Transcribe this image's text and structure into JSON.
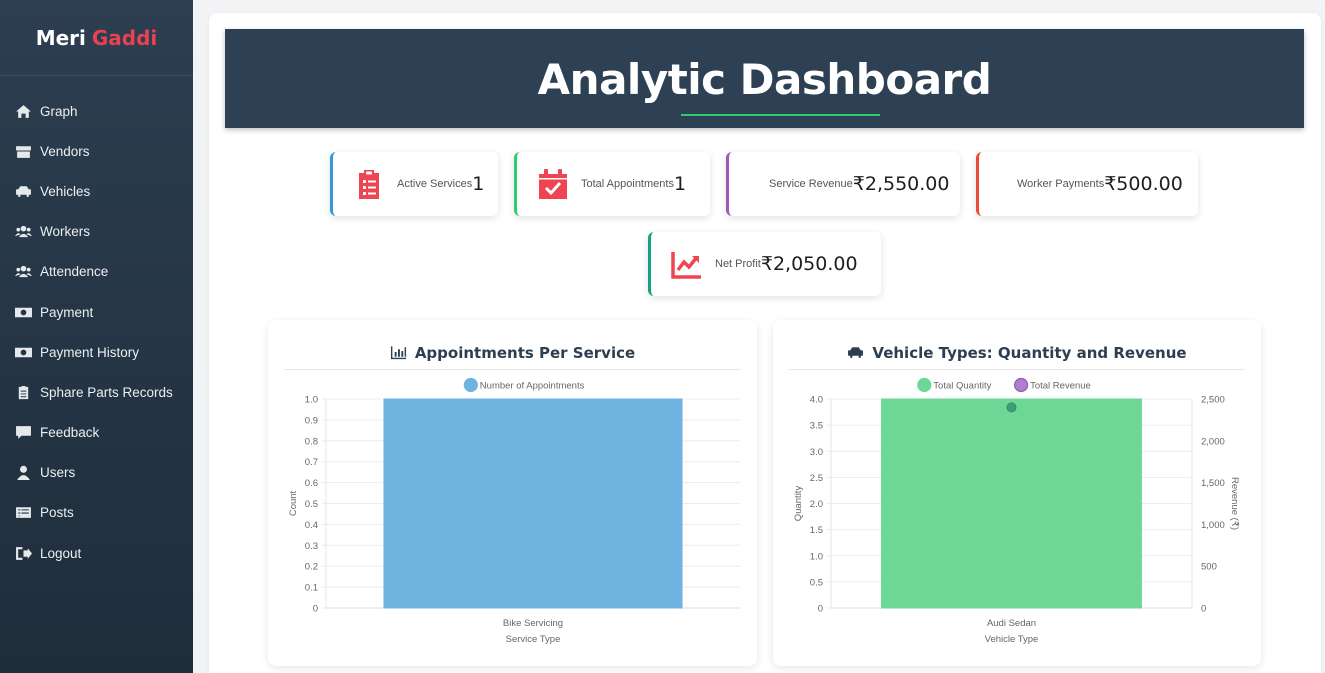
{
  "brand": {
    "first": "Meri",
    "second": "Gaddi"
  },
  "nav": [
    {
      "label": "Graph",
      "icon": "home-icon"
    },
    {
      "label": "Vendors",
      "icon": "store-icon"
    },
    {
      "label": "Vehicles",
      "icon": "car-icon"
    },
    {
      "label": "Workers",
      "icon": "users-icon"
    },
    {
      "label": "Attendence",
      "icon": "users-icon"
    },
    {
      "label": "Payment",
      "icon": "money-icon"
    },
    {
      "label": "Payment History",
      "icon": "money-icon"
    },
    {
      "label": "Sphare Parts Records",
      "icon": "clipboard-icon"
    },
    {
      "label": "Feedback",
      "icon": "comment-icon"
    },
    {
      "label": "Users",
      "icon": "user-icon"
    },
    {
      "label": "Posts",
      "icon": "list-icon"
    },
    {
      "label": "Logout",
      "icon": "logout-icon"
    }
  ],
  "banner": {
    "title": "Analytic Dashboard"
  },
  "stats": {
    "active_services": {
      "label": "Active Services",
      "value": "1",
      "color": "#3498db"
    },
    "total_appointments": {
      "label": "Total Appointments",
      "value": "1",
      "color": "#2ecc71"
    },
    "service_revenue": {
      "label": "Service Revenue",
      "value": "₹2,550.00",
      "color": "#9b59b6"
    },
    "worker_payments": {
      "label": "Worker Payments",
      "value": "₹500.00",
      "color": "#e74c3c"
    },
    "net_profit": {
      "label": "Net Profit",
      "value": "₹2,050.00",
      "color": "#16a085"
    }
  },
  "icon_color": "#ef4452",
  "chart_data": [
    {
      "type": "bar",
      "title": "Appointments Per Service",
      "categories": [
        "Bike Servicing"
      ],
      "series": [
        {
          "name": "Number of Appointments",
          "values": [
            1
          ],
          "color": "#6fb3e1"
        }
      ],
      "xlabel": "Service Type",
      "ylabel": "Count",
      "ylim": [
        0,
        1.0
      ],
      "yticks": [
        "1.0",
        "0.9",
        "0.8",
        "0.7",
        "0.6",
        "0.5",
        "0.4",
        "0.3",
        "0.2",
        "0.1",
        "0"
      ],
      "legend": "top",
      "grid": true
    },
    {
      "type": "bar",
      "title": "Vehicle Types: Quantity and Revenue",
      "categories": [
        "Audi Sedan"
      ],
      "series": [
        {
          "name": "Total Quantity",
          "values": [
            4
          ],
          "color": "#6dd895",
          "axis": "left",
          "kind": "bar"
        },
        {
          "name": "Total Revenue",
          "values": [
            2400
          ],
          "color": "#b07fd0",
          "axis": "right",
          "kind": "point"
        }
      ],
      "xlabel": "Vehicle Type",
      "ylabel": "Quantity",
      "y2label": "Revenue (₹)",
      "ylim": [
        0,
        4.0
      ],
      "y2lim": [
        0,
        2500
      ],
      "yticks": [
        "4.0",
        "3.5",
        "3.0",
        "2.5",
        "2.0",
        "1.5",
        "1.0",
        "0.5",
        "0"
      ],
      "y2ticks": [
        "2,500",
        "2,000",
        "1,500",
        "1,000",
        "500",
        "0"
      ],
      "legend": "top",
      "grid": true
    }
  ]
}
